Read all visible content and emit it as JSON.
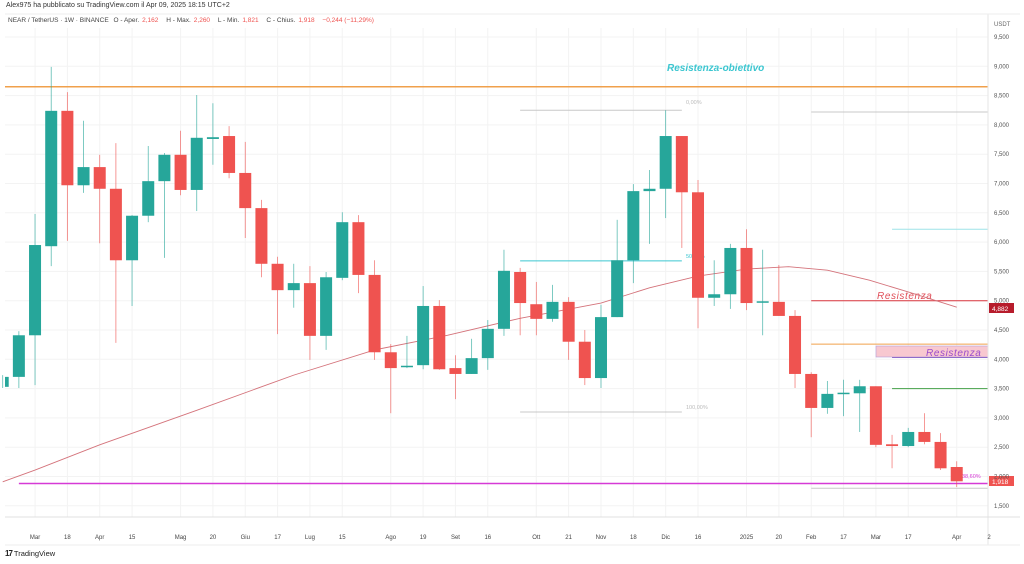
{
  "header": {
    "published": "Alex975 ha pubblicato su TradingView.com il Apr 09, 2025 18:15 UTC+2"
  },
  "legend": {
    "symbol": "NEAR / TetherUS · 1W · BINANCE",
    "open_label": "O - Aper.",
    "open": "2,162",
    "high_label": "H - Max.",
    "high": "2,260",
    "low_label": "L - Min.",
    "low": "1,821",
    "close_label": "C - Chius.",
    "close": "1,918",
    "change": "−0,244 (−11,29%)"
  },
  "footer": {
    "brand": "TradingView",
    "logo": "17"
  },
  "colors": {
    "up": "#26a69a",
    "down": "#ef5350",
    "ma": "#d4737b",
    "orange": "#f0a04b",
    "magenta": "#d63ad6",
    "cyan": "#3cc6d0",
    "resistance_red": "#d9363e",
    "green_line": "#43a047",
    "purple": "#7e57c2"
  },
  "chart_data": {
    "type": "candlestick",
    "title": "NEAR / TetherUS · 1W · BINANCE",
    "ylabel": "USDT",
    "ylim": [
      1.35,
      9.65
    ],
    "y_ticks": [
      "9,500",
      "9,000",
      "8,500",
      "8,000",
      "7,500",
      "7,000",
      "6,500",
      "6,000",
      "5,500",
      "5,000",
      "4,500",
      "4,000",
      "3,500",
      "3,000",
      "2,500",
      "2,000",
      "1,500"
    ],
    "y_tick_values": [
      9.5,
      9,
      8.5,
      8,
      7.5,
      7,
      6.5,
      6,
      5.5,
      5,
      4.5,
      4,
      3.5,
      3,
      2.5,
      2,
      1.5
    ],
    "x_ticks": [
      {
        "label": "Mar",
        "i": 2
      },
      {
        "label": "18",
        "i": 4
      },
      {
        "label": "Apr",
        "i": 6
      },
      {
        "label": "15",
        "i": 8
      },
      {
        "label": "Mag",
        "i": 11
      },
      {
        "label": "20",
        "i": 13
      },
      {
        "label": "Giu",
        "i": 15
      },
      {
        "label": "17",
        "i": 17
      },
      {
        "label": "Lug",
        "i": 19
      },
      {
        "label": "15",
        "i": 21
      },
      {
        "label": "Ago",
        "i": 24
      },
      {
        "label": "19",
        "i": 26
      },
      {
        "label": "Set",
        "i": 28
      },
      {
        "label": "16",
        "i": 30
      },
      {
        "label": "Ott",
        "i": 33
      },
      {
        "label": "21",
        "i": 35
      },
      {
        "label": "Nov",
        "i": 37
      },
      {
        "label": "18",
        "i": 39
      },
      {
        "label": "Dic",
        "i": 41
      },
      {
        "label": "16",
        "i": 43
      },
      {
        "label": "2025",
        "i": 46
      },
      {
        "label": "20",
        "i": 48
      },
      {
        "label": "Feb",
        "i": 50
      },
      {
        "label": "17",
        "i": 52
      },
      {
        "label": "Mar",
        "i": 54
      },
      {
        "label": "17",
        "i": 56
      },
      {
        "label": "Apr",
        "i": 59
      },
      {
        "label": "2",
        "i": 61
      }
    ],
    "candles_ohlc": [
      [
        3.53,
        3.73,
        3.51,
        3.7
      ],
      [
        3.7,
        4.48,
        3.51,
        4.41
      ],
      [
        4.41,
        6.48,
        3.56,
        5.95
      ],
      [
        5.93,
        8.99,
        5.59,
        8.24
      ],
      [
        8.24,
        8.56,
        6.02,
        6.97
      ],
      [
        6.97,
        8.07,
        6.84,
        7.28
      ],
      [
        7.28,
        7.49,
        5.98,
        6.91
      ],
      [
        6.91,
        7.69,
        4.28,
        5.69
      ],
      [
        5.69,
        6.46,
        4.91,
        6.45
      ],
      [
        6.45,
        7.64,
        6.34,
        7.04
      ],
      [
        7.04,
        7.52,
        5.73,
        7.49
      ],
      [
        7.49,
        7.9,
        6.8,
        6.89
      ],
      [
        6.89,
        8.51,
        6.53,
        7.78
      ],
      [
        7.76,
        8.37,
        7.32,
        7.79
      ],
      [
        7.81,
        7.98,
        7.09,
        7.18
      ],
      [
        7.18,
        7.71,
        6.07,
        6.58
      ],
      [
        6.58,
        6.72,
        5.4,
        5.63
      ],
      [
        5.63,
        5.75,
        4.43,
        5.18
      ],
      [
        5.18,
        5.63,
        4.88,
        5.3
      ],
      [
        5.3,
        5.59,
        3.99,
        4.4
      ],
      [
        4.4,
        5.49,
        4.16,
        5.4
      ],
      [
        5.39,
        6.51,
        5.35,
        6.34
      ],
      [
        6.34,
        6.46,
        5.13,
        5.44
      ],
      [
        5.44,
        5.69,
        3.99,
        4.12
      ],
      [
        4.12,
        4.26,
        3.08,
        3.85
      ],
      [
        3.87,
        4.4,
        3.85,
        3.89
      ],
      [
        3.9,
        5.25,
        3.83,
        4.91
      ],
      [
        4.91,
        5.01,
        3.82,
        3.83
      ],
      [
        3.85,
        4.07,
        3.32,
        3.75
      ],
      [
        3.75,
        4.35,
        3.75,
        4.02
      ],
      [
        4.02,
        4.67,
        3.82,
        4.52
      ],
      [
        4.52,
        5.87,
        4.4,
        5.51
      ],
      [
        5.49,
        5.56,
        4.41,
        4.96
      ],
      [
        4.94,
        5.32,
        4.41,
        4.69
      ],
      [
        4.69,
        5.27,
        4.64,
        4.98
      ],
      [
        4.98,
        5.06,
        3.99,
        4.3
      ],
      [
        4.3,
        4.5,
        3.56,
        3.68
      ],
      [
        3.68,
        4.93,
        3.51,
        4.72
      ],
      [
        4.72,
        6.38,
        4.72,
        5.69
      ],
      [
        5.69,
        6.99,
        5.3,
        6.87
      ],
      [
        6.87,
        7.23,
        5.97,
        6.91
      ],
      [
        6.91,
        8.25,
        6.41,
        7.81
      ],
      [
        7.81,
        7.81,
        5.9,
        6.85
      ],
      [
        6.85,
        7.06,
        4.53,
        5.05
      ],
      [
        5.05,
        5.69,
        4.91,
        5.11
      ],
      [
        5.11,
        5.97,
        4.86,
        5.9
      ],
      [
        5.9,
        6.22,
        4.84,
        4.96
      ],
      [
        4.97,
        5.87,
        4.41,
        4.99
      ],
      [
        4.98,
        5.61,
        4.74,
        4.74
      ],
      [
        4.74,
        4.84,
        3.51,
        3.75
      ],
      [
        3.75,
        3.78,
        2.67,
        3.17
      ],
      [
        3.17,
        3.63,
        3.07,
        3.41
      ],
      [
        3.41,
        3.65,
        3.03,
        3.43
      ],
      [
        3.42,
        3.65,
        2.76,
        3.54
      ],
      [
        3.54,
        3.54,
        2.5,
        2.54
      ],
      [
        2.55,
        2.71,
        2.14,
        2.52
      ],
      [
        2.52,
        2.83,
        2.5,
        2.76
      ],
      [
        2.76,
        3.08,
        2.55,
        2.59
      ],
      [
        2.59,
        2.74,
        2.11,
        2.14
      ],
      [
        2.162,
        2.26,
        1.821,
        1.918
      ]
    ],
    "moving_average": [
      [
        0,
        1.91
      ],
      [
        2,
        2.11
      ],
      [
        6,
        2.54
      ],
      [
        12,
        3.13
      ],
      [
        18,
        3.73
      ],
      [
        23,
        4.16
      ],
      [
        27.5,
        4.41
      ],
      [
        32,
        4.7
      ],
      [
        37,
        4.96
      ],
      [
        40,
        5.22
      ],
      [
        43,
        5.42
      ],
      [
        46,
        5.54
      ],
      [
        48.6,
        5.58
      ],
      [
        51,
        5.52
      ],
      [
        53.6,
        5.35
      ],
      [
        56,
        5.15
      ],
      [
        59,
        4.89
      ]
    ],
    "horizontal_lines": [
      {
        "name": "target-resistance",
        "price": 8.65,
        "from": 0,
        "to": 61.5,
        "color": "#f0a04b"
      },
      {
        "name": "fib-0",
        "price": 8.25,
        "from": 32,
        "to": 42,
        "color": "#c8c8c8"
      },
      {
        "name": "fib-50",
        "price": 5.68,
        "from": 32,
        "to": 42,
        "color": "#3cc6d0"
      },
      {
        "name": "fib-100",
        "price": 3.1,
        "from": 32,
        "to": 42,
        "color": "#c8c8c8"
      },
      {
        "name": "fib-right-top",
        "price": 8.22,
        "from": 50,
        "to": 61.5,
        "color": "#c8c8c8"
      },
      {
        "name": "fib-right-cyan",
        "price": 6.22,
        "from": 55,
        "to": 61.5,
        "color": "#9ee3e8"
      },
      {
        "name": "resistance-5",
        "price": 5.0,
        "from": 50,
        "to": 61.5,
        "color": "#d9363e"
      },
      {
        "name": "resistance-orange",
        "price": 4.26,
        "from": 50,
        "to": 61.5,
        "color": "#f0a04b"
      },
      {
        "name": "resistance-purple",
        "price": 4.03,
        "from": 55,
        "to": 61.5,
        "color": "#7e57c2"
      },
      {
        "name": "support-green",
        "price": 3.5,
        "from": 55,
        "to": 61.5,
        "color": "#43a047"
      },
      {
        "name": "support-magenta",
        "price": 1.88,
        "from": 1,
        "to": 61.5,
        "color": "#d63ad6"
      },
      {
        "name": "fib-right-bottom",
        "price": 1.8,
        "from": 50,
        "to": 61.5,
        "color": "#c8c8c8"
      }
    ],
    "annotations": {
      "target": "Resistenza-obiettivo",
      "resistance_1": "Resistenza",
      "resistance_2": "Resistenza",
      "fib_0": "0,00%",
      "fib_50": "50,00%",
      "fib_100": "100,00%",
      "fib_bottom": "38,60%"
    },
    "price_labels": {
      "ma_value": "4,882",
      "last_price": "1,918"
    }
  }
}
